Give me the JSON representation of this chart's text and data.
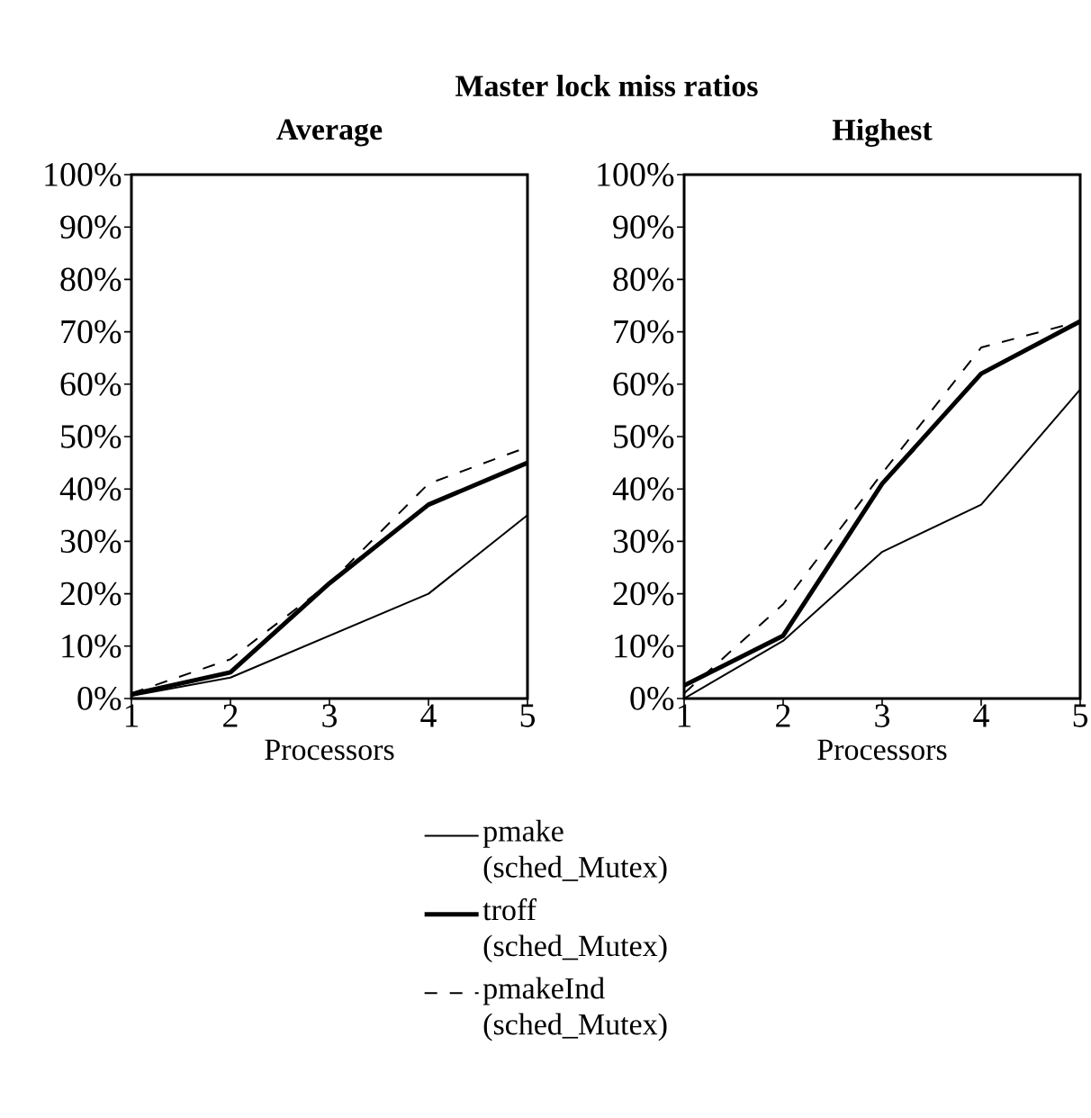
{
  "chart_data": [
    {
      "type": "line",
      "title": "Master lock miss ratios",
      "subtitle": "Average",
      "xlabel": "Processors",
      "x": [
        1,
        2,
        3,
        4,
        5
      ],
      "xlim": [
        1,
        5
      ],
      "xticks": [
        1,
        2,
        3,
        4,
        5
      ],
      "ylim": [
        0,
        100
      ],
      "yticks": [
        {
          "value": 0,
          "label": "0%"
        },
        {
          "value": 10,
          "label": "10%"
        },
        {
          "value": 20,
          "label": "20%"
        },
        {
          "value": 30,
          "label": "30%"
        },
        {
          "value": 40,
          "label": "40%"
        },
        {
          "value": 50,
          "label": "50%"
        },
        {
          "value": 60,
          "label": "60%"
        },
        {
          "value": 70,
          "label": "70%"
        },
        {
          "value": 80,
          "label": "80%"
        },
        {
          "value": 90,
          "label": "90%"
        },
        {
          "value": 100,
          "label": "100%"
        }
      ],
      "legend": "bottom",
      "grid": false,
      "series": [
        {
          "name": "pmake (sched_Mutex)",
          "color": "#000000",
          "line_style": "solid",
          "values": [
            0.5,
            4,
            12,
            20,
            35
          ]
        },
        {
          "name": "troff (sched_Mutex)",
          "color": "#000000",
          "line_style": "solid",
          "values": [
            0.8,
            5,
            22,
            37,
            45
          ]
        },
        {
          "name": "pmakeInd (sched_Mutex)",
          "color": "#000000",
          "line_style": "dashed",
          "values": [
            1,
            7.5,
            22,
            41,
            48
          ]
        }
      ]
    },
    {
      "type": "line",
      "subtitle": "Highest",
      "xlabel": "Processors",
      "x": [
        1,
        2,
        3,
        4,
        5
      ],
      "xlim": [
        1,
        5
      ],
      "xticks": [
        1,
        2,
        3,
        4,
        5
      ],
      "ylim": [
        0,
        100
      ],
      "yticks": [
        {
          "value": 0,
          "label": "0%"
        },
        {
          "value": 10,
          "label": "10%"
        },
        {
          "value": 20,
          "label": "20%"
        },
        {
          "value": 30,
          "label": "30%"
        },
        {
          "value": 40,
          "label": "40%"
        },
        {
          "value": 50,
          "label": "50%"
        },
        {
          "value": 60,
          "label": "60%"
        },
        {
          "value": 70,
          "label": "70%"
        },
        {
          "value": 80,
          "label": "80%"
        },
        {
          "value": 90,
          "label": "90%"
        },
        {
          "value": 100,
          "label": "100%"
        }
      ],
      "grid": false,
      "series": [
        {
          "color": "#000000",
          "line_style": "solid",
          "values": [
            0,
            11,
            28,
            37,
            59
          ]
        },
        {
          "color": "#000000",
          "line_style": "solid",
          "values": [
            2.5,
            12,
            41,
            62,
            72
          ]
        },
        {
          "color": "#000000",
          "line_style": "dashed",
          "values": [
            1,
            18,
            43,
            67,
            72
          ]
        }
      ]
    }
  ]
}
